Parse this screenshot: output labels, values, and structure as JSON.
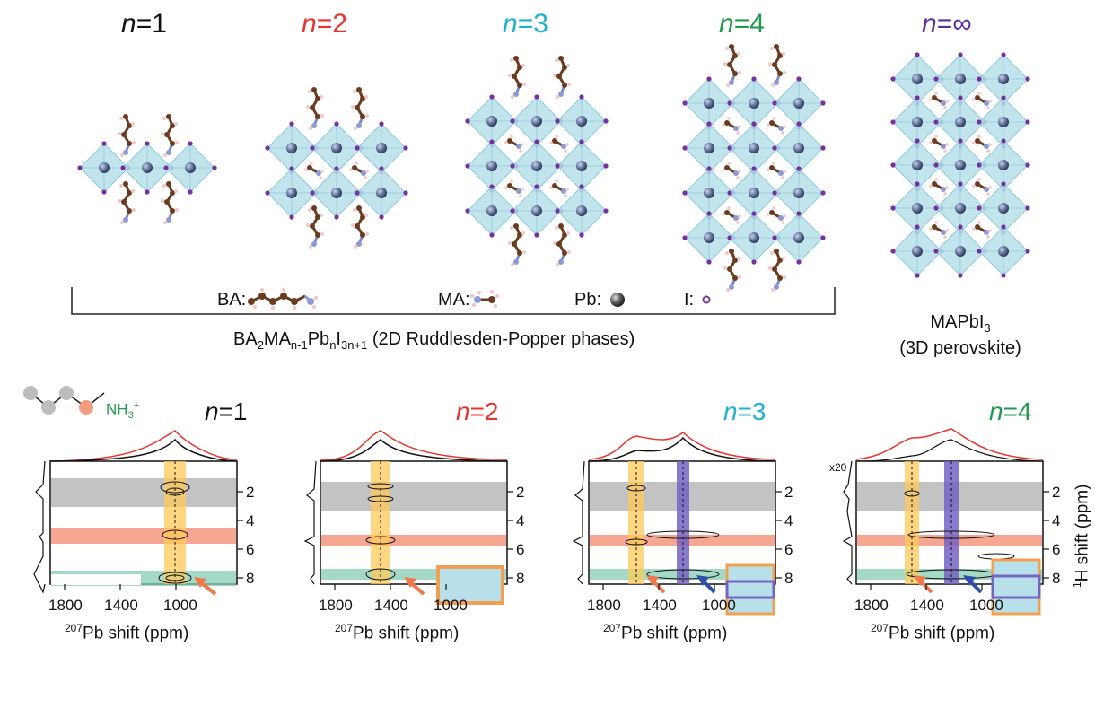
{
  "colors": {
    "black": "#111111",
    "red": "#e8332c",
    "cyan": "#1db1d0",
    "green": "#1f9a4c",
    "purple": "#5b2d9c",
    "octahedron": "#b7e0ea",
    "pb": "#5e6e96",
    "iodide": "#7a2fa0",
    "band_gray": "#a9a9a9",
    "band_red": "#f28a6c",
    "band_green": "#86cdb2",
    "band_yellow": "#ffca5a",
    "band_purple": "#7663c4",
    "arrow_orange": "#f0784a",
    "arrow_blue": "#2d4fa8"
  },
  "top": {
    "phases": [
      {
        "n_var": "n",
        "eq": "=1",
        "color": "black"
      },
      {
        "n_var": "n",
        "eq": "=2",
        "color": "red"
      },
      {
        "n_var": "n",
        "eq": "=3",
        "color": "cyan"
      },
      {
        "n_var": "n",
        "eq": "=4",
        "color": "green"
      },
      {
        "n_var": "n",
        "eq": "=∞",
        "color": "purple"
      }
    ],
    "legend": {
      "ba_label": "BA:",
      "ma_label": "MA:",
      "pb_label": "Pb:",
      "i_label": "I:"
    },
    "formula": {
      "p1": "BA",
      "s1": "2",
      "p2": "MA",
      "s2": "n-1",
      "p3": "Pb",
      "s3": "n",
      "p4": "I",
      "s4": "3n+1",
      "p5": " (2D Ruddlesden-Popper phases)"
    },
    "bulk": {
      "formula_main": "MAPbI",
      "formula_sub": "3",
      "description": "(3D perovskite)"
    }
  },
  "bottom": {
    "molecule_label": "NH",
    "molecule_sub": "3",
    "molecule_sup": "+",
    "x_axis_label_sup": "207",
    "x_axis_label_text": "Pb shift (ppm)",
    "x_ticks": [
      "1800",
      "1400",
      "1000"
    ],
    "y_ticks": [
      "2",
      "4",
      "6",
      "8"
    ],
    "y_axis_label_sup": "1",
    "y_axis_label_text": "H shift (ppm)",
    "scale_note": "x20",
    "panels": [
      {
        "n_var": "n",
        "eq": "=1",
        "color": "black"
      },
      {
        "n_var": "n",
        "eq": "=2",
        "color": "red"
      },
      {
        "n_var": "n",
        "eq": "=3",
        "color": "cyan"
      },
      {
        "n_var": "n",
        "eq": "=4",
        "color": "green"
      }
    ]
  }
}
